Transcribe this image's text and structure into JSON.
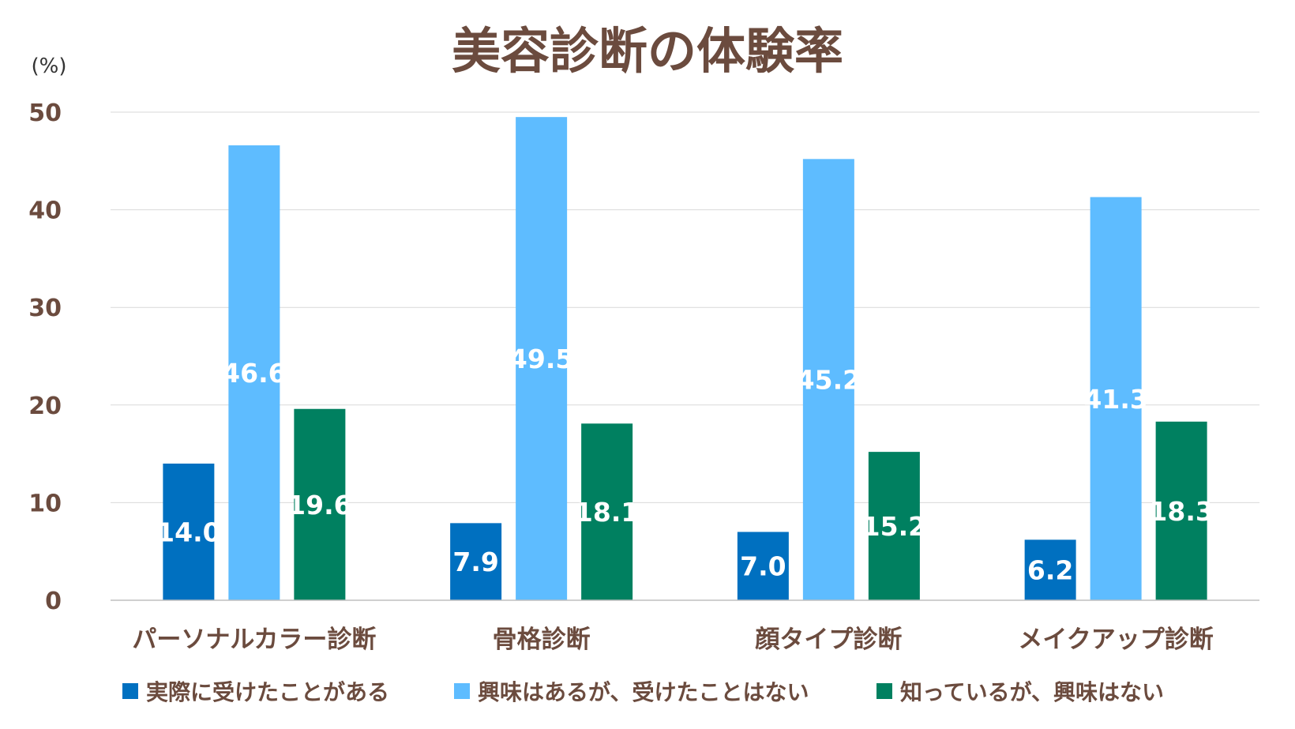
{
  "chart_data": {
    "type": "bar",
    "title": "美容診断の体験率",
    "unit_label": "(%)",
    "categories": [
      "パーソナルカラー診断",
      "骨格診断",
      "顔タイプ診断",
      "メイクアップ診断"
    ],
    "series": [
      {
        "name": "実際に受けたことがある",
        "color": "#0070c0",
        "values": [
          14.0,
          7.9,
          7.0,
          6.2
        ]
      },
      {
        "name": "興味はあるが、受けたことはない",
        "color": "#5ebcff",
        "values": [
          46.6,
          49.5,
          45.2,
          41.3
        ]
      },
      {
        "name": "知っているが、興味はない",
        "color": "#008060",
        "values": [
          19.6,
          18.1,
          15.2,
          18.3
        ]
      }
    ],
    "ylim": [
      0,
      50
    ],
    "yticks": [
      0,
      10,
      20,
      30,
      40,
      50
    ],
    "grid": true,
    "legend": "bottom"
  }
}
